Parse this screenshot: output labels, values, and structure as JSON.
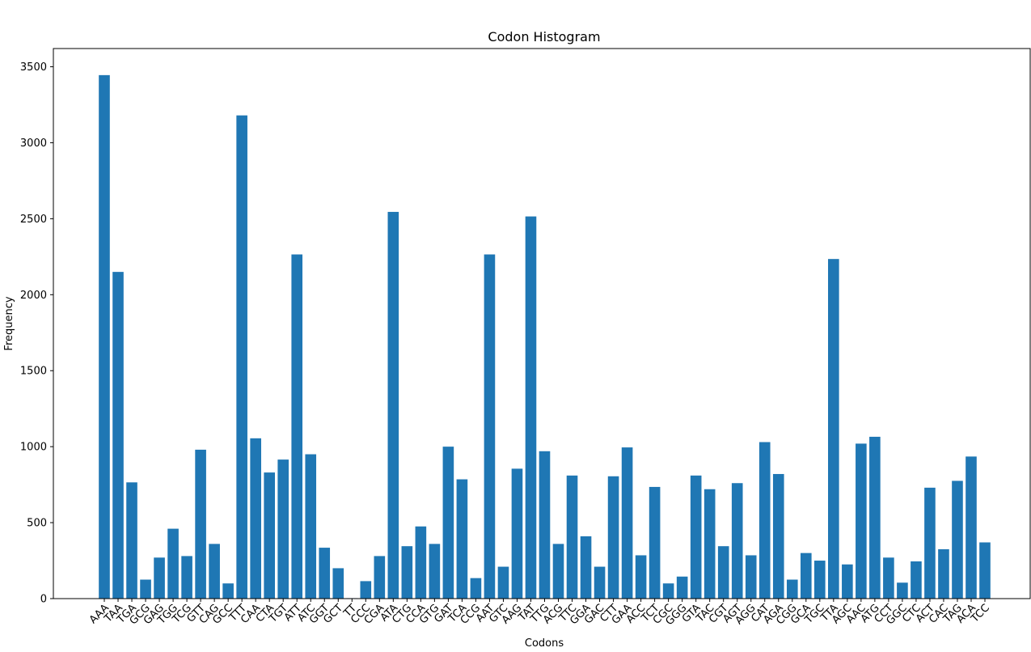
{
  "chart_data": {
    "type": "bar",
    "title": "Codon Histogram",
    "xlabel": "Codons",
    "ylabel": "Frequency",
    "ylim": [
      0,
      3620
    ],
    "yticks": [
      0,
      500,
      1000,
      1500,
      2000,
      2500,
      3000,
      3500
    ],
    "grid": false,
    "bar_color": "#1f77b4",
    "categories": [
      "AAA",
      "TAA",
      "TGA",
      "GCG",
      "GAG",
      "TGG",
      "TCG",
      "GTT",
      "CAG",
      "GCC",
      "TTT",
      "CAA",
      "CTA",
      "TGT",
      "ATT",
      "ATC",
      "GGT",
      "GCT",
      "TT",
      "CCC",
      "CGA",
      "ATA",
      "CTG",
      "CCA",
      "GTG",
      "GAT",
      "TCA",
      "CCG",
      "AAT",
      "GTC",
      "AAG",
      "TAT",
      "TTG",
      "ACG",
      "TTC",
      "GGA",
      "GAC",
      "CTT",
      "GAA",
      "ACC",
      "TCT",
      "CGC",
      "GGG",
      "GTA",
      "TAC",
      "CGT",
      "AGT",
      "AGG",
      "CAT",
      "AGA",
      "CGG",
      "GCA",
      "TGC",
      "TTA",
      "AGC",
      "AAC",
      "ATG",
      "CCT",
      "GGC",
      "CTC",
      "ACT",
      "CAC",
      "TAG",
      "ACA",
      "TCC"
    ],
    "values": [
      3445,
      2150,
      765,
      125,
      270,
      460,
      280,
      980,
      360,
      100,
      3180,
      1055,
      830,
      915,
      2265,
      950,
      335,
      200,
      3,
      115,
      280,
      2545,
      345,
      475,
      360,
      1000,
      785,
      135,
      2265,
      210,
      855,
      2515,
      970,
      360,
      810,
      410,
      210,
      805,
      995,
      285,
      735,
      100,
      145,
      810,
      720,
      345,
      760,
      285,
      1030,
      820,
      125,
      300,
      250,
      2235,
      225,
      1020,
      1065,
      270,
      105,
      245,
      730,
      325,
      775,
      935,
      370
    ]
  }
}
